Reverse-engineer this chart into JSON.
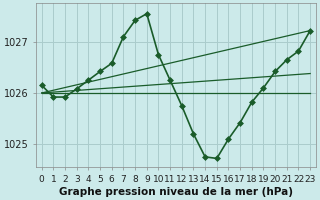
{
  "xlabel": "Graphe pression niveau de la mer (hPa)",
  "background_color": "#cceaea",
  "grid_color": "#aacccc",
  "line_color": "#1a5c2a",
  "xlim": [
    -0.5,
    23.5
  ],
  "ylim": [
    1024.55,
    1027.75
  ],
  "yticks": [
    1025,
    1026,
    1027
  ],
  "xticks": [
    0,
    1,
    2,
    3,
    4,
    5,
    6,
    7,
    8,
    9,
    10,
    11,
    12,
    13,
    14,
    15,
    16,
    17,
    18,
    19,
    20,
    21,
    22,
    23
  ],
  "series": [
    {
      "x": [
        0,
        1,
        2,
        3,
        4,
        5,
        6,
        7,
        8,
        9,
        10,
        11,
        12,
        13,
        14,
        15,
        16,
        17,
        18,
        19,
        20,
        21,
        22,
        23
      ],
      "y": [
        1026.15,
        1025.92,
        1025.92,
        1026.08,
        1026.25,
        1026.42,
        1026.58,
        1027.1,
        1027.42,
        1027.55,
        1026.75,
        1026.25,
        1025.75,
        1025.2,
        1024.75,
        1024.72,
        1025.1,
        1025.42,
        1025.82,
        1026.1,
        1026.42,
        1026.65,
        1026.82,
        1027.22
      ],
      "marker": "D",
      "linewidth": 1.2,
      "markersize": 3.0,
      "with_markers": true
    },
    {
      "x": [
        0,
        23
      ],
      "y": [
        1026.0,
        1026.0
      ],
      "marker": null,
      "linewidth": 0.9,
      "with_markers": false
    },
    {
      "x": [
        0,
        23
      ],
      "y": [
        1026.0,
        1026.38
      ],
      "marker": null,
      "linewidth": 0.9,
      "with_markers": false
    },
    {
      "x": [
        0,
        23
      ],
      "y": [
        1026.0,
        1027.22
      ],
      "marker": null,
      "linewidth": 0.9,
      "with_markers": false
    }
  ],
  "xlabel_fontsize": 7.5,
  "xlabel_bold": true,
  "tick_fontsize": 6.5,
  "ytick_fontsize": 7
}
